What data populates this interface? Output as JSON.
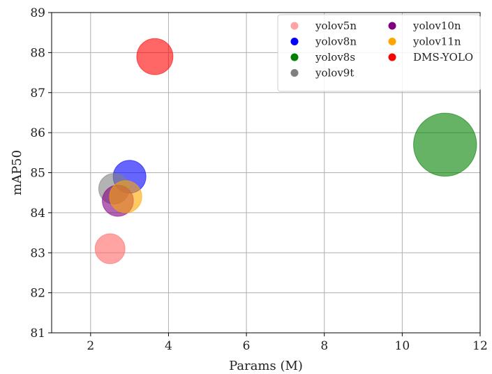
{
  "chart_data": {
    "type": "scatter",
    "xlabel": "Params (M)",
    "ylabel": "mAP50",
    "xlim": [
      1,
      12
    ],
    "ylim": [
      81,
      89
    ],
    "xticks": [
      2,
      4,
      6,
      8,
      10,
      12
    ],
    "yticks": [
      81,
      82,
      83,
      84,
      85,
      86,
      87,
      88,
      89
    ],
    "grid": true,
    "legend_position": "top-right",
    "legend_columns": 2,
    "series": [
      {
        "name": "yolov5n",
        "color": "#ff6666",
        "x": 2.5,
        "y": 83.1,
        "bubble_size": 2.5
      },
      {
        "name": "yolov8n",
        "color": "#0000ff",
        "x": 3.0,
        "y": 84.9,
        "bubble_size": 3.0
      },
      {
        "name": "yolov8s",
        "color": "#008000",
        "x": 11.1,
        "y": 85.7,
        "bubble_size": 11.1
      },
      {
        "name": "yolov9t",
        "color": "#808080",
        "x": 2.6,
        "y": 84.6,
        "bubble_size": 2.6
      },
      {
        "name": "yolov10n",
        "color": "#800080",
        "x": 2.7,
        "y": 84.3,
        "bubble_size": 2.7
      },
      {
        "name": "yolov11n",
        "color": "#ffa500",
        "x": 2.9,
        "y": 84.4,
        "bubble_size": 2.9
      },
      {
        "name": "DMS-YOLO",
        "color": "#ff0000",
        "x": 3.65,
        "y": 87.9,
        "bubble_size": 3.65
      }
    ],
    "draw_order": [
      "yolov8s",
      "yolov5n",
      "yolov8n",
      "yolov9t",
      "yolov10n",
      "yolov11n",
      "DMS-YOLO"
    ],
    "legend_order": [
      "yolov5n",
      "yolov8n",
      "yolov8s",
      "yolov9t",
      "yolov10n",
      "yolov11n",
      "DMS-YOLO"
    ]
  }
}
